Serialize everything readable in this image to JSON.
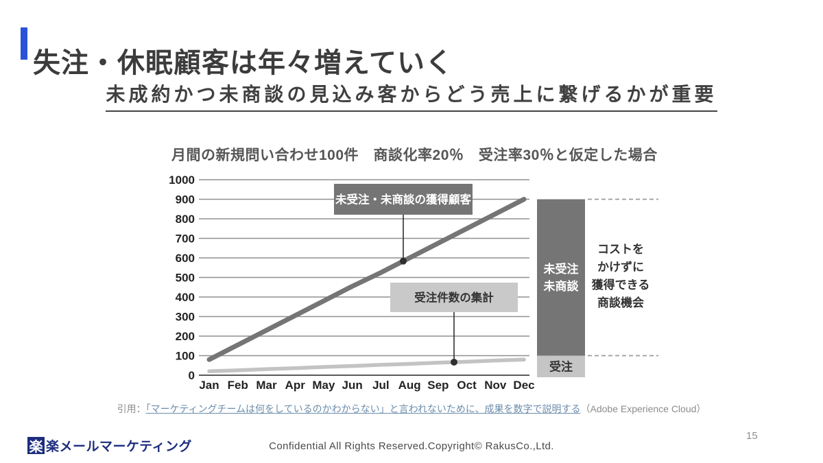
{
  "header": {
    "title": "失注・休眠顧客は年々増えていく",
    "accent_color": "#2a52d9"
  },
  "subtitle": "未成約かつ未商談の見込み客からどう売上に繋げるかが重要",
  "chart_data": {
    "type": "line",
    "title": "月間の新規問い合わせ100件　商談化率20％　受注率30％と仮定した場合",
    "categories": [
      "Jan",
      "Feb",
      "Mar",
      "Apr",
      "May",
      "Jun",
      "Jul",
      "Aug",
      "Sep",
      "Oct",
      "Nov",
      "Dec"
    ],
    "ylim": [
      0,
      1000
    ],
    "ytick_step": 100,
    "grid": true,
    "legend_position": "none",
    "series": [
      {
        "name": "未受注・未商談の獲得顧客",
        "color": "#757575",
        "width": 7,
        "values": [
          80,
          155,
          230,
          305,
          380,
          455,
          525,
          600,
          675,
          750,
          825,
          900
        ]
      },
      {
        "name": "受注件数の集計",
        "color": "#c3c3c3",
        "width": 5.5,
        "values": [
          20,
          25,
          31,
          36,
          42,
          47,
          53,
          58,
          64,
          69,
          75,
          80
        ]
      }
    ],
    "annotations": [
      {
        "text": "未受注・未商談の獲得顧客",
        "series": 0,
        "box_fill": "#757575",
        "text_color": "#ffffff"
      },
      {
        "text": "受注件数の集計",
        "series": 1,
        "box_fill": "#c9c9c9",
        "text_color": "#333333"
      }
    ],
    "end_bar": {
      "segments": [
        {
          "label": "未受注\n未商談",
          "from": 100,
          "to": 900,
          "fill": "#757575",
          "text_color": "#ffffff"
        },
        {
          "label": "受注",
          "from": 0,
          "to": 100,
          "fill": "#c5c5c5",
          "text_color": "#333333"
        }
      ]
    },
    "side_note": {
      "lines": [
        "コストを",
        "かけずに",
        "獲得できる",
        "商談機会"
      ]
    }
  },
  "citation": {
    "prefix": "引用：",
    "link_text": "「マーケティングチームは何をしているのかわからない」と言われないために、成果を数字で説明する",
    "suffix": "（Adobe Experience Cloud）"
  },
  "footer": {
    "logo_mark": "楽",
    "logo_text": "楽メールマーケティング",
    "confidential": "Confidential All Rights Reserved.Copyright© RakusCo.,Ltd.",
    "page_number": "15"
  }
}
